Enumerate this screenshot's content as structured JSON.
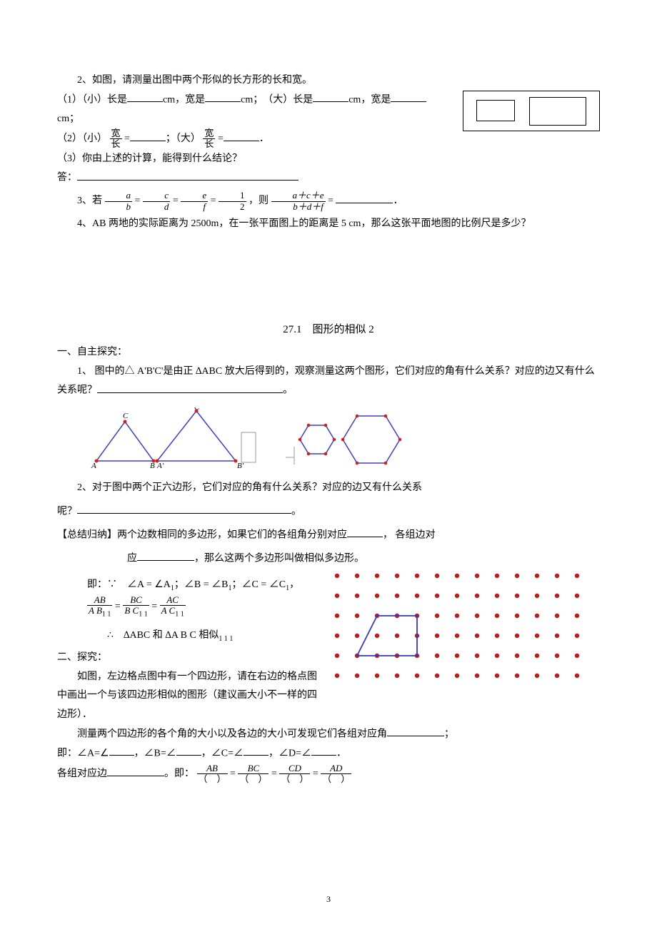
{
  "q2": {
    "prompt": "2、如图，请测量出图中两个形似的长方形的长和宽。",
    "line1_pre1": "（1）（小）长是",
    "unit_cm": "cm",
    "line1_w": "，宽是",
    "line1_sep": "；　（大）长是",
    "line1_w2": "，宽是",
    "line1_tail": "；",
    "line2_pre": "（2）（小）",
    "frac_kuan": "宽",
    "frac_chang": "长",
    "line2_mid": "；（大）",
    "line2_tail": "．",
    "line3": "（3）你由上述的计算，能得到什么结论？",
    "ans_label": "答："
  },
  "q3": {
    "pre": "3、若",
    "eq_mid": " = ",
    "half": "1",
    "half_d": "2",
    "then": "，则",
    "tail": " = ",
    "end": "．",
    "a": "a",
    "b": "b",
    "c": "c",
    "d": "d",
    "e": "e",
    "f": "f",
    "num2": "a＋c＋e",
    "den2": "b＋d＋f"
  },
  "q4": "4、AB 两地的实际距离为 2500m，在一张平面图上的距离是 5 cm，那么这张平面地图的比例尺是多少？",
  "sec": {
    "title": "27.1　图形的相似 2",
    "h1": "一、自主探究：",
    "p1a": "1、 图中的△ A'B'C'是由正 ∆ABC 放大后得到的，观察测量这两个图形，它们对应的角有什么关系？对应的边又有什么关系呢？",
    "p1b": "。",
    "p2a": "2、对于图中两个正六边形，它们对应的角有什么关系？对应的边又有什么关系",
    "p2b": "呢？",
    "p2c": "。",
    "sum_lead": "【总结归纳】两个边数相同的多边形，如果它们的各组角分别对应",
    "sum_mid": "， 各组边对",
    "sum_line2a": "应",
    "sum_line2b": "，那么这两个多边形叫做相似多边形。",
    "eq_lead": "即：∵　∠A = ∠A",
    "eq_sep1": "；∠B = ∠B",
    "eq_sep2": "；∠C = ∠C",
    "eq_comma": "，",
    "AB": "AB",
    "BC": "BC",
    "AC": "AC",
    "A1B1": "A B",
    "B1C1": "B C",
    "A1C1": "A C",
    "concl": "∴　∆ABC 和 ∆A B C 相似",
    "sub1": "1"
  },
  "s2": {
    "h": "二、探究：",
    "p1": "如图，左边格点图中有一个四边形，请在右边的格点图中画出一个与该四边形相似的图形（建议画大小不一样的四边形）．",
    "p2a": "测量两个四边形的各个角的大小以及各边的大小可发现它们各组对应角",
    "p2b": "；",
    "p3": "即：∠A=∠",
    "p3b": "，∠B=∠",
    "p3c": "，∠C=∠",
    "p3d": "，∠D=∠",
    "p3e": "．",
    "p4a": "各组对应边",
    "p4b": "。即：",
    "AB": "AB",
    "BC": "BC",
    "CD": "CD",
    "AD": "AD",
    "paren": "（　）"
  },
  "tri_labels": {
    "A": "A",
    "B": "B",
    "C": "C",
    "Ap": "A'",
    "Bp": "B'",
    "Cp": "C'"
  },
  "colors": {
    "purple": "#4040c0",
    "red": "#d02020",
    "dot": "#bb1c1c",
    "shape": "#3838b8"
  },
  "grid": {
    "cols": 13,
    "rows": 6,
    "spacing": 28,
    "dot_r": 3.2
  },
  "quad": {
    "pts": [
      [
        1,
        4
      ],
      [
        2,
        2
      ],
      [
        4,
        2
      ],
      [
        4,
        4
      ]
    ]
  },
  "page_number": "3"
}
